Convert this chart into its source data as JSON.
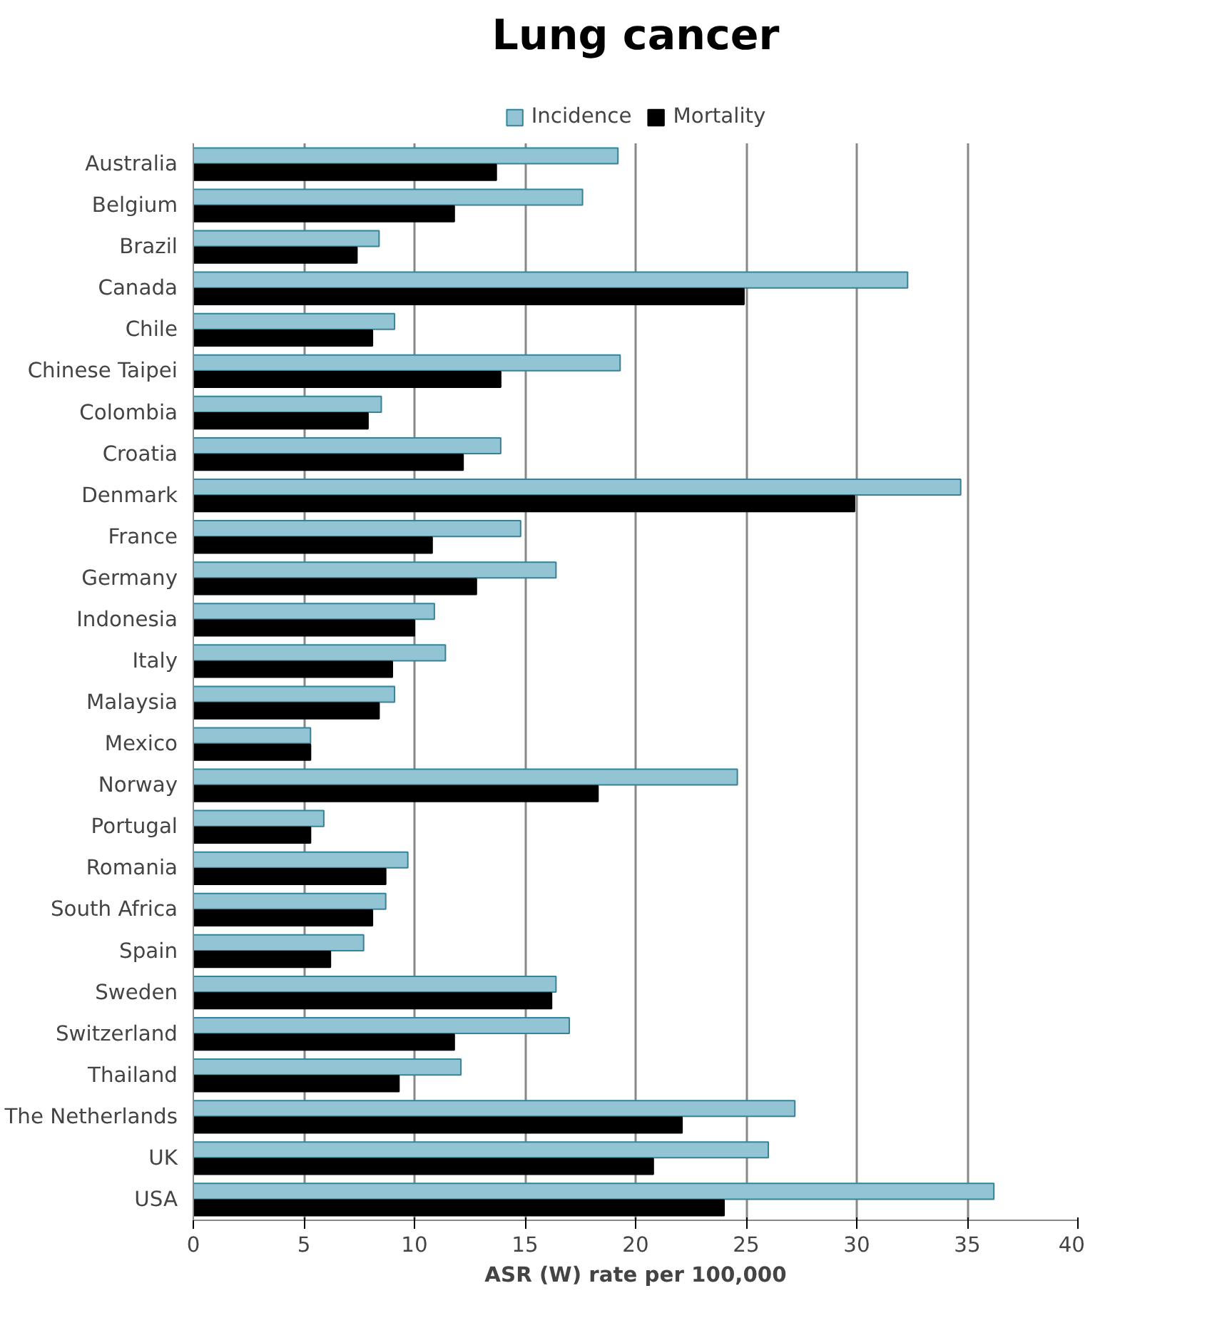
{
  "chart_data": {
    "type": "bar",
    "orientation": "horizontal",
    "title": "Lung cancer",
    "xlabel": "ASR (W) rate per 100,000",
    "categories": [
      "Australia",
      "Belgium",
      "Brazil",
      "Canada",
      "Chile",
      "Chinese Taipei",
      "Colombia",
      "Croatia",
      "Denmark",
      "France",
      "Germany",
      "Indonesia",
      "Italy",
      "Malaysia",
      "Mexico",
      "Norway",
      "Portugal",
      "Romania",
      "South Africa",
      "Spain",
      "Sweden",
      "Switzerland",
      "Thailand",
      "The Netherlands",
      "UK",
      "USA"
    ],
    "series": [
      {
        "name": "Incidence",
        "color": "#93c4d4",
        "values": [
          19.2,
          17.6,
          8.4,
          32.3,
          9.1,
          19.3,
          8.5,
          13.9,
          34.7,
          14.8,
          16.4,
          10.9,
          11.4,
          9.1,
          5.3,
          24.6,
          5.9,
          9.7,
          8.7,
          7.7,
          16.4,
          17.0,
          12.1,
          27.2,
          26.0,
          36.2
        ]
      },
      {
        "name": "Mortality",
        "color": "#000000",
        "values": [
          13.7,
          11.8,
          7.4,
          24.9,
          8.1,
          13.9,
          7.9,
          12.2,
          29.9,
          10.8,
          12.8,
          10.0,
          9.0,
          8.4,
          5.3,
          18.3,
          5.3,
          8.7,
          8.1,
          6.2,
          16.2,
          11.8,
          9.3,
          22.1,
          20.8,
          24.0
        ]
      }
    ],
    "xlim": [
      0,
      40
    ],
    "xticks": [
      0,
      5,
      10,
      15,
      20,
      25,
      30,
      35,
      40
    ],
    "grid": "x",
    "legend": "top"
  }
}
